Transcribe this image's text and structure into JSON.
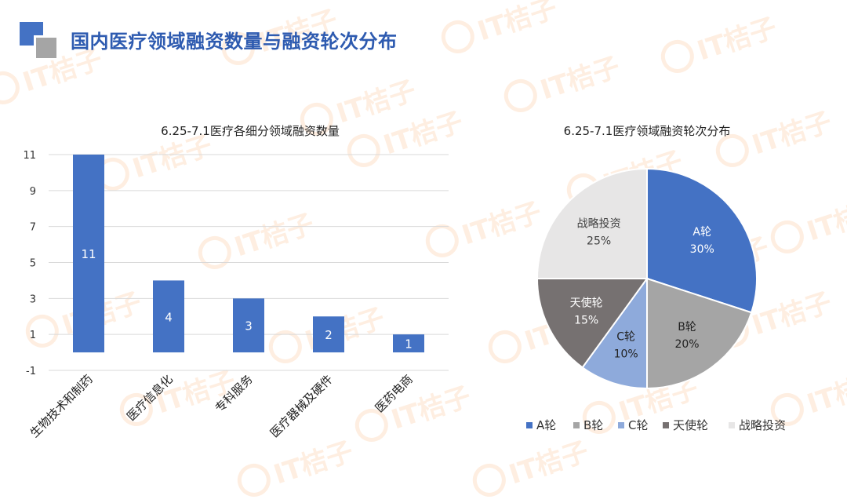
{
  "slide": {
    "title": "国内医疗领域融资数量与融资轮次分布",
    "watermark_text": "IT桔子",
    "accent_colors": {
      "title": "#2e5bb0",
      "logo_blue": "#4472c4",
      "logo_gray": "#a5a5a5",
      "watermark": "#f79646"
    }
  },
  "chart_data": [
    {
      "type": "bar",
      "title": "6.25-7.1医疗各细分领域融资数量",
      "categories": [
        "生物技术和制药",
        "医疗信息化",
        "专科服务",
        "医疗器械及硬件",
        "医药电商"
      ],
      "values": [
        11,
        4,
        3,
        2,
        1
      ],
      "data_labels": [
        "11",
        "4",
        "3",
        "2",
        "1"
      ],
      "y_ticks": [
        "11",
        "9",
        "7",
        "5",
        "3",
        "1",
        "-1"
      ],
      "ylim": [
        -1,
        11
      ],
      "grid": true,
      "bar_color": "#4472c4"
    },
    {
      "type": "pie",
      "title": "6.25-7.1医疗领域融资轮次分布",
      "labels": [
        "A轮",
        "B轮",
        "C轮",
        "天使轮",
        "战略投资"
      ],
      "values": [
        30,
        20,
        10,
        15,
        25
      ],
      "percent_labels": [
        "30%",
        "20%",
        "10%",
        "15%",
        "25%"
      ],
      "colors": [
        "#4472c4",
        "#a5a5a5",
        "#8eaadb",
        "#767171",
        "#e7e6e6"
      ],
      "legend_position": "bottom"
    }
  ]
}
